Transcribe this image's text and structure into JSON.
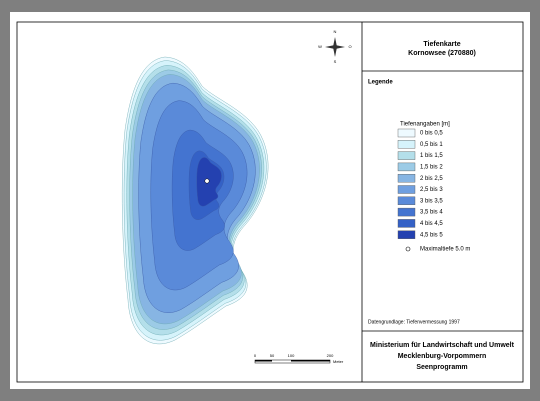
{
  "header": {
    "title": "Tiefenkarte",
    "subtitle": "Kornowsee (270880)"
  },
  "legend": {
    "heading": "Legende",
    "subheading": "Tiefenangaben [m]",
    "items": [
      {
        "label": "0 bis 0,5",
        "color": "#eefaff"
      },
      {
        "label": "0,5 bis 1",
        "color": "#d6f3fb"
      },
      {
        "label": "1 bis 1,5",
        "color": "#b4dfea"
      },
      {
        "label": "1,5 bis 2",
        "color": "#9ccbe6"
      },
      {
        "label": "2 bis 2,5",
        "color": "#87b5e3"
      },
      {
        "label": "2,5 bis 3",
        "color": "#6f9fe0"
      },
      {
        "label": "3 bis 3,5",
        "color": "#5a8ad9"
      },
      {
        "label": "3,5 bis 4",
        "color": "#4474d0"
      },
      {
        "label": "4 bis 4,5",
        "color": "#3461c6"
      },
      {
        "label": "4,5 bis 5",
        "color": "#2441b0"
      }
    ],
    "max_depth_label": "Maximaltiefe 5.0 m"
  },
  "source": "Datengrundlage: Tiefenvermessung 1997",
  "ministry": [
    "Ministerium für Landwirtschaft und Umwelt",
    "Mecklenburg-Vorpommern",
    "Seenprogramm"
  ],
  "scale": {
    "labels": [
      "0",
      "50",
      "100",
      "200"
    ],
    "unit": "Meter"
  },
  "compass": {
    "north": "N",
    "south": "S",
    "west": "W",
    "east": "O"
  }
}
